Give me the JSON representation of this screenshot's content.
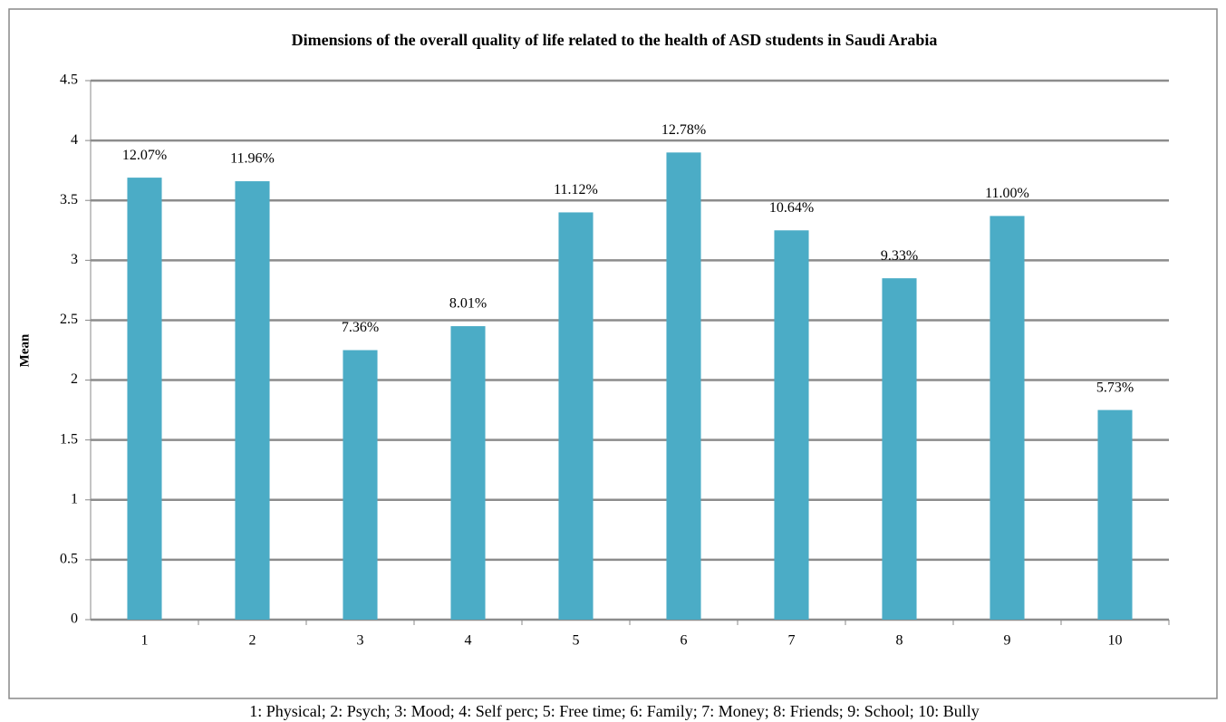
{
  "chart_data": {
    "type": "bar",
    "title": "Dimensions of the overall quality of life related to the health of ASD students in Saudi Arabia",
    "ylabel": "Mean",
    "categories": [
      "1",
      "2",
      "3",
      "4",
      "5",
      "6",
      "7",
      "8",
      "9",
      "10"
    ],
    "values": [
      3.69,
      3.66,
      2.25,
      2.45,
      3.4,
      3.9,
      3.25,
      2.85,
      3.37,
      1.75
    ],
    "bar_labels": [
      "12.07%",
      "11.96%",
      "7.36%",
      "8.01%",
      "11.12%",
      "12.78%",
      "10.64%",
      "9.33%",
      "11.00%",
      "5.73%"
    ],
    "color": "#4bacc6",
    "ylim": [
      0,
      4.5
    ],
    "yticks": [
      0,
      0.5,
      1,
      1.5,
      2,
      2.5,
      3,
      3.5,
      4,
      4.5
    ],
    "grid": true,
    "caption": "1: Physical; 2: Psych; 3: Mood; 4: Self perc; 5: Free time; 6: Family; 7: Money; 8: Friends; 9: School; 10: Bully"
  }
}
